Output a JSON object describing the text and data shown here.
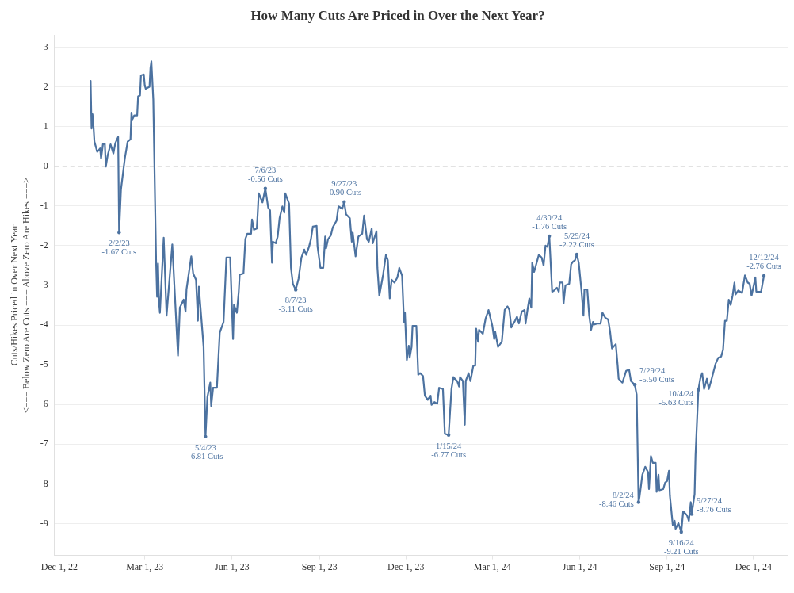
{
  "chart_data": {
    "type": "line",
    "title": "How Many Cuts Are Priced in Over the Next Year?",
    "ylabel": "Cuts/Hikes Priced in Over Next Year\n<=== Below Zero Are Cuts === Above Zero Are Hikes ===>",
    "x": [
      "2023-01-03",
      "2023-01-04",
      "2023-01-05",
      "2023-01-06",
      "2023-01-07",
      "2023-01-10",
      "2023-01-13",
      "2023-01-14",
      "2023-01-16",
      "2023-01-18",
      "2023-01-19",
      "2023-01-21",
      "2023-01-24",
      "2023-01-27",
      "2023-01-29",
      "2023-02-01",
      "2023-02-02",
      "2023-02-04",
      "2023-02-08",
      "2023-02-11",
      "2023-02-14",
      "2023-02-15",
      "2023-02-16",
      "2023-02-18",
      "2023-02-21",
      "2023-02-22",
      "2023-02-24",
      "2023-02-25",
      "2023-02-28",
      "2023-03-01",
      "2023-03-02",
      "2023-03-06",
      "2023-03-07",
      "2023-03-08",
      "2023-03-10",
      "2023-03-13",
      "2023-03-14",
      "2023-03-15",
      "2023-03-16",
      "2023-03-17",
      "2023-03-21",
      "2023-03-24",
      "2023-03-30",
      "2023-04-05",
      "2023-04-07",
      "2023-04-11",
      "2023-04-13",
      "2023-04-14",
      "2023-04-19",
      "2023-04-21",
      "2023-04-24",
      "2023-04-26",
      "2023-04-27",
      "2023-05-02",
      "2023-05-04",
      "2023-05-06",
      "2023-05-09",
      "2023-05-10",
      "2023-05-12",
      "2023-05-16",
      "2023-05-19",
      "2023-05-23",
      "2023-05-26",
      "2023-05-30",
      "2023-06-02",
      "2023-06-03",
      "2023-06-06",
      "2023-06-08",
      "2023-06-09",
      "2023-06-13",
      "2023-06-15",
      "2023-06-17",
      "2023-06-21",
      "2023-06-22",
      "2023-06-24",
      "2023-06-27",
      "2023-06-28",
      "2023-06-29",
      "2023-07-03",
      "2023-07-06",
      "2023-07-09",
      "2023-07-11",
      "2023-07-13",
      "2023-07-14",
      "2023-07-17",
      "2023-07-19",
      "2023-07-21",
      "2023-07-24",
      "2023-07-26",
      "2023-07-27",
      "2023-07-31",
      "2023-08-02",
      "2023-08-04",
      "2023-08-07",
      "2023-08-10",
      "2023-08-13",
      "2023-08-16",
      "2023-08-18",
      "2023-08-21",
      "2023-08-23",
      "2023-08-25",
      "2023-08-29",
      "2023-08-30",
      "2023-09-02",
      "2023-09-05",
      "2023-09-07",
      "2023-09-08",
      "2023-09-10",
      "2023-09-13",
      "2023-09-15",
      "2023-09-19",
      "2023-09-21",
      "2023-09-25",
      "2023-09-27",
      "2023-09-29",
      "2023-10-03",
      "2023-10-05",
      "2023-10-06",
      "2023-10-09",
      "2023-10-12",
      "2023-10-16",
      "2023-10-18",
      "2023-10-21",
      "2023-10-23",
      "2023-10-26",
      "2023-10-27",
      "2023-10-31",
      "2023-11-01",
      "2023-11-03",
      "2023-11-07",
      "2023-11-10",
      "2023-11-12",
      "2023-11-14",
      "2023-11-16",
      "2023-11-19",
      "2023-11-22",
      "2023-11-24",
      "2023-11-27",
      "2023-11-29",
      "2023-11-30",
      "2023-12-02",
      "2023-12-04",
      "2023-12-05",
      "2023-12-07",
      "2023-12-08",
      "2023-12-12",
      "2023-12-14",
      "2023-12-16",
      "2023-12-19",
      "2023-12-21",
      "2023-12-24",
      "2023-12-27",
      "2023-12-28",
      "2023-12-31",
      "2024-01-03",
      "2024-01-05",
      "2024-01-09",
      "2024-01-11",
      "2024-01-15",
      "2024-01-18",
      "2024-01-20",
      "2024-01-24",
      "2024-01-26",
      "2024-01-27",
      "2024-01-30",
      "2024-02-01",
      "2024-02-02",
      "2024-02-05",
      "2024-02-07",
      "2024-02-10",
      "2024-02-12",
      "2024-02-13",
      "2024-02-15",
      "2024-02-16",
      "2024-02-20",
      "2024-02-23",
      "2024-02-26",
      "2024-03-01",
      "2024-03-03",
      "2024-03-04",
      "2024-03-07",
      "2024-03-11",
      "2024-03-14",
      "2024-03-17",
      "2024-03-19",
      "2024-03-21",
      "2024-03-25",
      "2024-03-27",
      "2024-03-29",
      "2024-04-01",
      "2024-04-04",
      "2024-04-05",
      "2024-04-07",
      "2024-04-09",
      "2024-04-11",
      "2024-04-12",
      "2024-04-14",
      "2024-04-17",
      "2024-04-19",
      "2024-04-22",
      "2024-04-24",
      "2024-04-26",
      "2024-04-28",
      "2024-04-30",
      "2024-05-03",
      "2024-05-05",
      "2024-05-08",
      "2024-05-10",
      "2024-05-11",
      "2024-05-14",
      "2024-05-15",
      "2024-05-17",
      "2024-05-21",
      "2024-05-23",
      "2024-05-25",
      "2024-05-27",
      "2024-05-29",
      "2024-05-31",
      "2024-06-03",
      "2024-06-05",
      "2024-06-06",
      "2024-06-09",
      "2024-06-11",
      "2024-06-13",
      "2024-06-15",
      "2024-06-16",
      "2024-06-20",
      "2024-06-23",
      "2024-06-25",
      "2024-06-28",
      "2024-07-01",
      "2024-07-03",
      "2024-07-05",
      "2024-07-09",
      "2024-07-11",
      "2024-07-12",
      "2024-07-16",
      "2024-07-20",
      "2024-07-23",
      "2024-07-25",
      "2024-07-29",
      "2024-07-31",
      "2024-08-02",
      "2024-08-03",
      "2024-08-06",
      "2024-08-09",
      "2024-08-12",
      "2024-08-13",
      "2024-08-15",
      "2024-08-17",
      "2024-08-20",
      "2024-08-21",
      "2024-08-23",
      "2024-08-24",
      "2024-08-28",
      "2024-08-30",
      "2024-09-01",
      "2024-09-03",
      "2024-09-04",
      "2024-09-07",
      "2024-09-09",
      "2024-09-10",
      "2024-09-13",
      "2024-09-16",
      "2024-09-18",
      "2024-09-22",
      "2024-09-24",
      "2024-09-26",
      "2024-09-27",
      "2024-09-30",
      "2024-10-01",
      "2024-10-04",
      "2024-10-06",
      "2024-10-08",
      "2024-10-10",
      "2024-10-13",
      "2024-10-15",
      "2024-10-18",
      "2024-10-22",
      "2024-10-25",
      "2024-10-28",
      "2024-10-30",
      "2024-11-01",
      "2024-11-03",
      "2024-11-05",
      "2024-11-07",
      "2024-11-09",
      "2024-11-11",
      "2024-11-12",
      "2024-11-15",
      "2024-11-19",
      "2024-11-22",
      "2024-11-25",
      "2024-11-27",
      "2024-11-29",
      "2024-12-03",
      "2024-12-04",
      "2024-12-09",
      "2024-12-12"
    ],
    "series": [
      {
        "color": "#4c72a0",
        "values": [
          2.15,
          0.95,
          1.31,
          1.01,
          0.62,
          0.36,
          0.45,
          0.19,
          0.56,
          0.56,
          -0.01,
          0.28,
          0.55,
          0.32,
          0.58,
          0.74,
          -1.67,
          -0.58,
          0.19,
          0.62,
          0.68,
          1.35,
          1.18,
          1.28,
          1.28,
          1.76,
          1.78,
          2.29,
          2.31,
          2.04,
          1.95,
          2.0,
          2.47,
          2.64,
          1.68,
          -2.43,
          -3.29,
          -2.45,
          -3.42,
          -3.69,
          -1.8,
          -3.76,
          -1.97,
          -4.77,
          -3.56,
          -3.36,
          -3.66,
          -3.1,
          -2.27,
          -2.7,
          -2.86,
          -3.89,
          -3.03,
          -4.55,
          -6.81,
          -5.81,
          -5.45,
          -6.04,
          -5.58,
          -5.58,
          -4.19,
          -3.92,
          -2.3,
          -2.3,
          -4.35,
          -3.49,
          -3.69,
          -3.16,
          -2.73,
          -2.7,
          -1.83,
          -1.7,
          -1.7,
          -1.34,
          -1.6,
          -1.57,
          -1.17,
          -0.68,
          -0.91,
          -0.56,
          -1.04,
          -1.11,
          -2.43,
          -1.9,
          -1.94,
          -1.77,
          -1.31,
          -1.01,
          -1.17,
          -0.68,
          -0.94,
          -2.56,
          -2.96,
          -3.11,
          -2.83,
          -2.3,
          -2.1,
          -2.23,
          -2.03,
          -1.84,
          -1.52,
          -1.5,
          -2.03,
          -2.56,
          -2.56,
          -1.77,
          -2.07,
          -1.84,
          -1.74,
          -1.54,
          -1.37,
          -1.01,
          -1.07,
          -0.9,
          -1.21,
          -1.31,
          -1.9,
          -1.67,
          -2.27,
          -1.77,
          -1.7,
          -1.24,
          -1.84,
          -1.9,
          -1.57,
          -1.94,
          -1.64,
          -2.56,
          -3.26,
          -2.73,
          -2.23,
          -2.37,
          -3.33,
          -2.86,
          -2.93,
          -2.8,
          -2.56,
          -2.76,
          -3.92,
          -3.69,
          -4.88,
          -4.52,
          -4.82,
          -4.55,
          -4.02,
          -4.02,
          -5.25,
          -5.21,
          -5.28,
          -5.78,
          -5.88,
          -5.78,
          -6.01,
          -5.94,
          -5.98,
          -5.58,
          -5.61,
          -6.74,
          -6.77,
          -5.61,
          -5.31,
          -5.41,
          -5.55,
          -5.31,
          -5.41,
          -6.51,
          -5.41,
          -5.21,
          -5.41,
          -5.02,
          -5.02,
          -4.09,
          -4.42,
          -4.12,
          -4.22,
          -3.83,
          -3.62,
          -4.02,
          -4.35,
          -4.16,
          -4.55,
          -4.42,
          -3.62,
          -3.53,
          -3.62,
          -4.06,
          -3.89,
          -3.79,
          -3.96,
          -3.66,
          -3.62,
          -3.96,
          -3.62,
          -3.33,
          -3.56,
          -2.43,
          -2.66,
          -2.4,
          -2.23,
          -2.3,
          -2.5,
          -2.0,
          -2.03,
          -1.76,
          -3.16,
          -3.13,
          -3.06,
          -3.16,
          -2.93,
          -2.93,
          -3.46,
          -3.0,
          -2.96,
          -2.47,
          -2.4,
          -2.37,
          -2.22,
          -2.43,
          -3.16,
          -3.76,
          -3.1,
          -3.1,
          -3.76,
          -4.12,
          -3.92,
          -3.99,
          -3.96,
          -3.96,
          -3.69,
          -3.82,
          -3.86,
          -4.16,
          -4.59,
          -4.48,
          -5.02,
          -5.35,
          -5.45,
          -5.15,
          -5.12,
          -5.41,
          -5.5,
          -5.75,
          -8.46,
          -8.33,
          -7.77,
          -7.57,
          -7.7,
          -8.13,
          -7.3,
          -7.47,
          -7.47,
          -8.2,
          -7.77,
          -8.16,
          -8.13,
          -7.97,
          -7.93,
          -7.67,
          -8.3,
          -9.03,
          -8.93,
          -9.13,
          -8.99,
          -9.21,
          -8.69,
          -8.79,
          -8.93,
          -8.46,
          -8.76,
          -8.26,
          -7.27,
          -5.63,
          -5.35,
          -5.21,
          -5.61,
          -5.35,
          -5.61,
          -5.35,
          -4.98,
          -4.82,
          -4.79,
          -4.62,
          -3.89,
          -3.89,
          -3.36,
          -3.49,
          -3.26,
          -2.93,
          -3.23,
          -3.13,
          -3.19,
          -2.75,
          -2.93,
          -2.96,
          -3.26,
          -2.8,
          -3.16,
          -3.16,
          -2.76
        ]
      }
    ],
    "xlim": [
      "2022-11-26",
      "2025-01-06"
    ],
    "xticks": [
      {
        "value": "2022-12-01",
        "label": "Dec 1, 22"
      },
      {
        "value": "2023-03-01",
        "label": "Mar 1, 23"
      },
      {
        "value": "2023-06-01",
        "label": "Jun 1, 23"
      },
      {
        "value": "2023-09-01",
        "label": "Sep 1, 23"
      },
      {
        "value": "2023-12-01",
        "label": "Dec 1, 23"
      },
      {
        "value": "2024-03-01",
        "label": "Mar 1, 24"
      },
      {
        "value": "2024-06-01",
        "label": "Jun 1, 24"
      },
      {
        "value": "2024-09-01",
        "label": "Sep 1, 24"
      },
      {
        "value": "2024-12-01",
        "label": "Dec 1, 24"
      }
    ],
    "ylim": [
      -9.8,
      3.3
    ],
    "yticks": [
      -9,
      -8,
      -7,
      -6,
      -5,
      -4,
      -3,
      -2,
      -1,
      0,
      1,
      2,
      3
    ],
    "grid": "y",
    "ref_lines": [
      {
        "axis": "y",
        "value": 0,
        "color": "#8c8c8c",
        "line_style": "dashed"
      }
    ],
    "annotations": [
      {
        "text": "2/2/23\n-1.67 Cuts",
        "x": "2023-02-02",
        "y": -1.67
      },
      {
        "text": "5/4/23\n-6.81 Cuts",
        "x": "2023-05-04",
        "y": -6.81
      },
      {
        "text": "7/6/23\n-0.56 Cuts",
        "x": "2023-07-06",
        "y": -0.56
      },
      {
        "text": "8/7/23\n-3.11 Cuts",
        "x": "2023-08-07",
        "y": -3.11
      },
      {
        "text": "9/27/23\n-0.90 Cuts",
        "x": "2023-09-27",
        "y": -0.9
      },
      {
        "text": "1/15/24\n-6.77 Cuts",
        "x": "2024-01-15",
        "y": -6.77
      },
      {
        "text": "4/30/24\n-1.76 Cuts",
        "x": "2024-04-30",
        "y": -1.76
      },
      {
        "text": "5/29/24\n-2.22 Cuts",
        "x": "2024-05-29",
        "y": -2.22
      },
      {
        "text": "7/29/24\n-5.50 Cuts",
        "x": "2024-07-29",
        "y": -5.5
      },
      {
        "text": "8/2/24\n-8.46 Cuts",
        "x": "2024-08-02",
        "y": -8.46
      },
      {
        "text": "9/16/24\n-9.21 Cuts",
        "x": "2024-09-16",
        "y": -9.21
      },
      {
        "text": "9/27/24\n-8.76 Cuts",
        "x": "2024-09-27",
        "y": -8.76
      },
      {
        "text": "10/4/24\n-5.63 Cuts",
        "x": "2024-10-04",
        "y": -5.63
      },
      {
        "text": "12/12/24\n-2.76 Cuts",
        "x": "2024-12-12",
        "y": -2.76
      }
    ]
  }
}
